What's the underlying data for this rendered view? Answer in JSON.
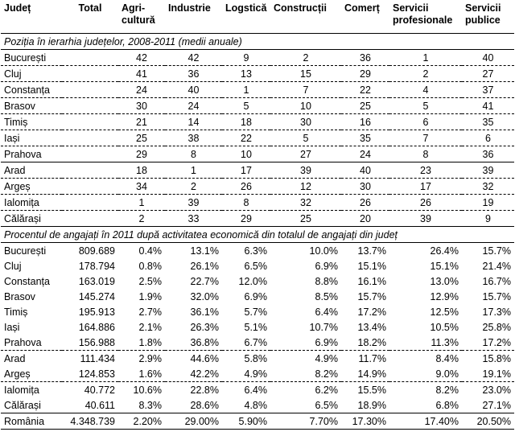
{
  "header": {
    "judet": "Județ",
    "total": "Total",
    "agri_1": "Agri-",
    "agri_2": "cultură",
    "industrie": "Industrie",
    "logistica": "Logstică",
    "constructii": "Construcții",
    "comert": "Comerț",
    "serv_prof_1": "Servicii",
    "serv_prof_2": "profesionale",
    "serv_pub_1": "Servicii",
    "serv_pub_2": "publice"
  },
  "section1": {
    "title": "Poziția în ierarhia județelor, 2008-2011 (medii anuale)",
    "rows": [
      {
        "name": "București",
        "vals": [
          "42",
          "42",
          "9",
          "2",
          "36",
          "1",
          "40"
        ]
      },
      {
        "name": "Cluj",
        "vals": [
          "41",
          "36",
          "13",
          "15",
          "29",
          "2",
          "27"
        ]
      },
      {
        "name": "Constanța",
        "vals": [
          "24",
          "40",
          "1",
          "7",
          "22",
          "4",
          "37"
        ]
      },
      {
        "name": "Brasov",
        "vals": [
          "30",
          "24",
          "5",
          "10",
          "25",
          "5",
          "41"
        ]
      },
      {
        "name": "Timiș",
        "vals": [
          "21",
          "14",
          "18",
          "30",
          "16",
          "6",
          "35"
        ]
      },
      {
        "name": "Iași",
        "vals": [
          "25",
          "38",
          "22",
          "5",
          "35",
          "7",
          "6"
        ]
      },
      {
        "name": "Prahova",
        "vals": [
          "29",
          "8",
          "10",
          "27",
          "24",
          "8",
          "36"
        ]
      },
      {
        "name": "Arad",
        "vals": [
          "18",
          "1",
          "17",
          "39",
          "40",
          "23",
          "39"
        ]
      },
      {
        "name": "Argeș",
        "vals": [
          "34",
          "2",
          "26",
          "12",
          "30",
          "17",
          "32"
        ]
      },
      {
        "name": "Ialomița",
        "vals": [
          "1",
          "39",
          "8",
          "32",
          "26",
          "26",
          "19"
        ]
      },
      {
        "name": "Călărași",
        "vals": [
          "2",
          "33",
          "29",
          "25",
          "20",
          "39",
          "9"
        ]
      }
    ]
  },
  "section2": {
    "title": "Procentul de angajați în 2011 după activitatea economică din totalul de angajați din județ",
    "rows": [
      {
        "name": "București",
        "total": "809.689",
        "vals": [
          "0.4%",
          "13.1%",
          "6.3%",
          "10.0%",
          "13.7%",
          "26.4%",
          "15.7%"
        ]
      },
      {
        "name": "Cluj",
        "total": "178.794",
        "vals": [
          "0.8%",
          "26.1%",
          "6.5%",
          "6.9%",
          "15.1%",
          "15.1%",
          "21.4%"
        ]
      },
      {
        "name": "Constanța",
        "total": "163.019",
        "vals": [
          "2.5%",
          "22.7%",
          "12.0%",
          "8.8%",
          "16.1%",
          "13.0%",
          "16.7%"
        ]
      },
      {
        "name": "Brasov",
        "total": "145.274",
        "vals": [
          "1.9%",
          "32.0%",
          "6.9%",
          "8.5%",
          "15.7%",
          "12.9%",
          "15.7%"
        ]
      },
      {
        "name": "Timiș",
        "total": "195.913",
        "vals": [
          "2.7%",
          "36.1%",
          "5.7%",
          "6.4%",
          "17.2%",
          "12.5%",
          "17.3%"
        ]
      },
      {
        "name": "Iași",
        "total": "164.886",
        "vals": [
          "2.1%",
          "26.3%",
          "5.1%",
          "10.7%",
          "13.4%",
          "10.5%",
          "25.8%"
        ]
      },
      {
        "name": "Prahova",
        "total": "156.988",
        "vals": [
          "1.8%",
          "36.8%",
          "6.7%",
          "6.9%",
          "18.2%",
          "11.3%",
          "17.2%"
        ]
      },
      {
        "name": "Arad",
        "total": "111.434",
        "vals": [
          "2.9%",
          "44.6%",
          "5.8%",
          "4.9%",
          "11.7%",
          "8.4%",
          "15.8%"
        ]
      },
      {
        "name": "Argeș",
        "total": "124.853",
        "vals": [
          "1.6%",
          "42.2%",
          "4.9%",
          "8.2%",
          "14.9%",
          "9.0%",
          "19.1%"
        ]
      },
      {
        "name": "Ialomița",
        "total": "40.772",
        "vals": [
          "10.6%",
          "22.8%",
          "6.4%",
          "6.2%",
          "15.5%",
          "8.2%",
          "23.0%"
        ]
      },
      {
        "name": "Călărași",
        "total": "40.611",
        "vals": [
          "8.3%",
          "28.6%",
          "4.8%",
          "6.5%",
          "18.9%",
          "6.8%",
          "27.1%"
        ]
      }
    ],
    "final": {
      "name": "România",
      "total": "4.348.739",
      "vals": [
        "2.20%",
        "29.00%",
        "5.90%",
        "7.70%",
        "17.30%",
        "17.40%",
        "20.50%"
      ]
    }
  }
}
